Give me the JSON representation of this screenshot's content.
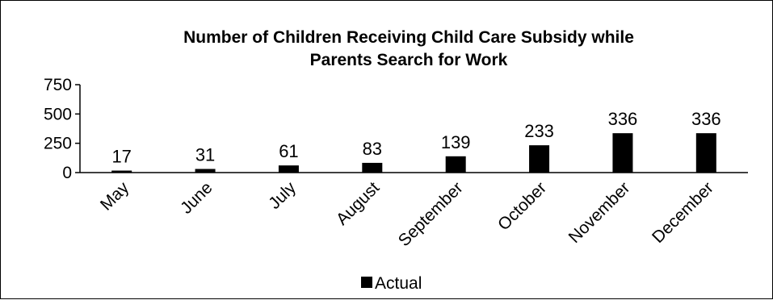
{
  "chart_data": {
    "type": "bar",
    "title_lines": [
      "Number of Children Receiving Child Care Subsidy while",
      "Parents Search for Work"
    ],
    "categories": [
      "May",
      "June",
      "July",
      "August",
      "September",
      "October",
      "November",
      "December"
    ],
    "series": [
      {
        "name": "Actual",
        "values": [
          17,
          31,
          61,
          83,
          139,
          233,
          336,
          336
        ],
        "color": "#000000"
      }
    ],
    "ylim": [
      0,
      750
    ],
    "yticks": [
      0,
      250,
      500,
      750
    ],
    "grid": false,
    "legend": "bottom"
  }
}
